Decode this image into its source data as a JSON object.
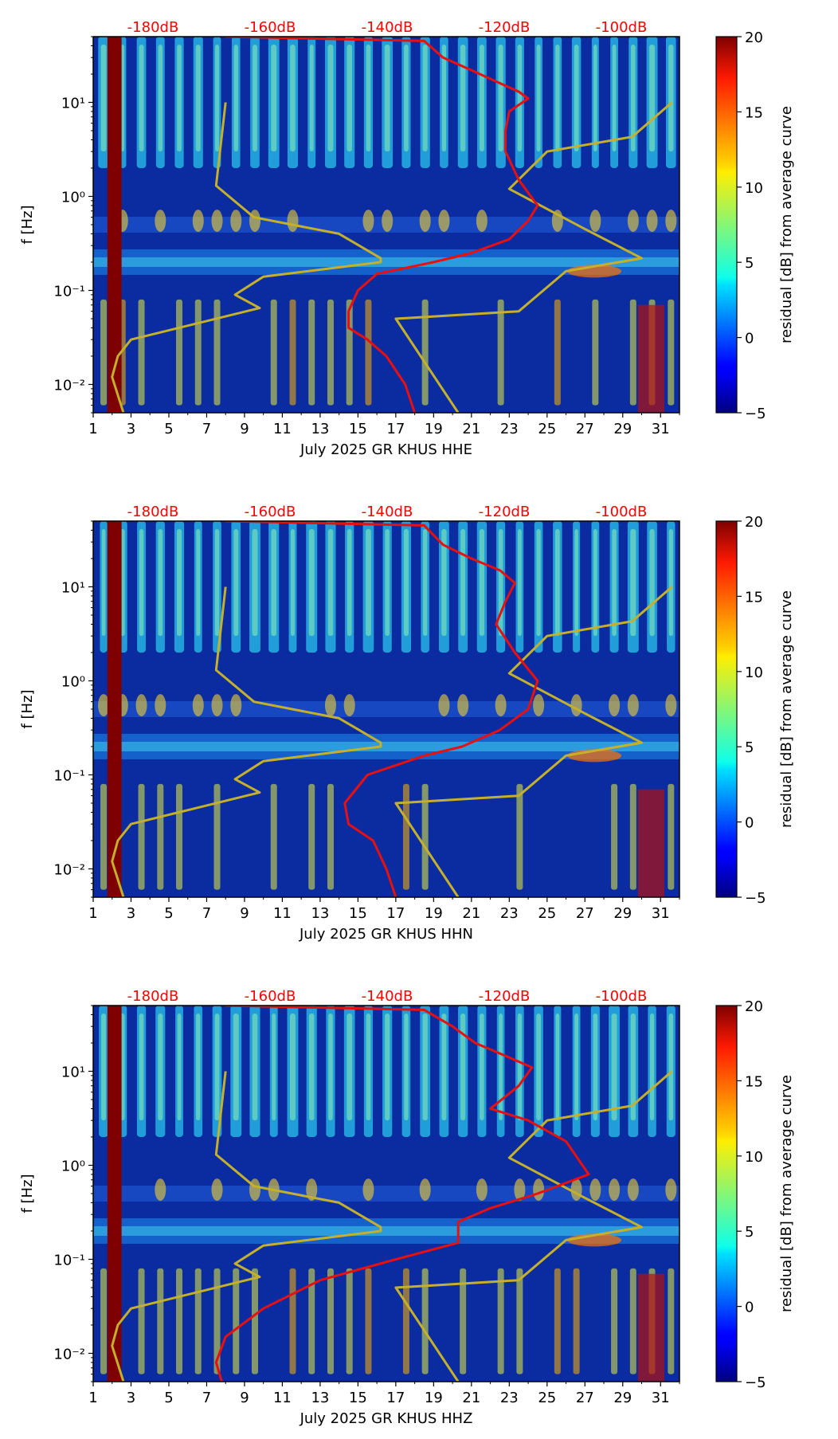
{
  "chart_data": [
    {
      "type": "heatmap",
      "channel": "HHE",
      "xlabel": "July 2025 GR KHUS  HHE",
      "ylabel": "f [Hz]",
      "x_ticks": [
        "1",
        "3",
        "5",
        "7",
        "9",
        "11",
        "13",
        "15",
        "17",
        "19",
        "21",
        "23",
        "25",
        "27",
        "29",
        "31"
      ],
      "x_range": [
        1,
        32
      ],
      "y_range": [
        0.005,
        50
      ],
      "y_scale": "log",
      "y_ticks": [
        "10⁻²",
        "10⁻¹",
        "10⁰",
        "10¹"
      ],
      "db_labels": [
        "-180dB",
        "-160dB",
        "-140dB",
        "-120dB",
        "-100dB"
      ],
      "colorbar": {
        "label": "residual [dB] from average curve",
        "ticks": [
          "−5",
          "0",
          "5",
          "10",
          "15",
          "20"
        ],
        "range": [
          -5,
          20
        ],
        "colormap": "jet"
      },
      "red_curve": [
        [
          8,
          50
        ],
        [
          18.5,
          45
        ],
        [
          19.5,
          30
        ],
        [
          21,
          22
        ],
        [
          22.5,
          16
        ],
        [
          23.5,
          13
        ],
        [
          24,
          11
        ],
        [
          23,
          8
        ],
        [
          22.8,
          5
        ],
        [
          22.8,
          3
        ],
        [
          23.5,
          1.5
        ],
        [
          24.5,
          0.8
        ],
        [
          24,
          0.55
        ],
        [
          23,
          0.35
        ],
        [
          21,
          0.25
        ],
        [
          19,
          0.2
        ],
        [
          16,
          0.15
        ],
        [
          15,
          0.1
        ],
        [
          14.5,
          0.06
        ],
        [
          14.5,
          0.04
        ],
        [
          15.5,
          0.03
        ],
        [
          16.5,
          0.02
        ],
        [
          17.5,
          0.01
        ],
        [
          18,
          0.005
        ]
      ],
      "yellow_curve": [
        [
          8,
          10
        ],
        [
          7.5,
          1.3
        ],
        [
          9.5,
          0.6
        ],
        [
          14,
          0.4
        ],
        [
          16.2,
          0.22
        ],
        [
          16.2,
          0.2
        ],
        [
          10,
          0.14
        ],
        [
          8.5,
          0.09
        ],
        [
          9.8,
          0.065
        ],
        [
          3,
          0.03
        ],
        [
          2.3,
          0.02
        ],
        [
          2,
          0.012
        ],
        [
          2.6,
          0.005
        ]
      ],
      "olive_curve": [
        [
          31.6,
          10
        ],
        [
          29.5,
          4.3
        ],
        [
          25,
          3
        ],
        [
          23,
          1.2
        ],
        [
          27,
          0.45
        ],
        [
          30,
          0.22
        ],
        [
          26,
          0.16
        ],
        [
          23.5,
          0.06
        ],
        [
          17,
          0.05
        ],
        [
          20.3,
          0.005
        ]
      ]
    },
    {
      "type": "heatmap",
      "channel": "HHN",
      "xlabel": "July 2025 GR KHUS  HHN",
      "ylabel": "f [Hz]",
      "x_ticks": [
        "1",
        "3",
        "5",
        "7",
        "9",
        "11",
        "13",
        "15",
        "17",
        "19",
        "21",
        "23",
        "25",
        "27",
        "29",
        "31"
      ],
      "x_range": [
        1,
        32
      ],
      "y_range": [
        0.005,
        50
      ],
      "y_scale": "log",
      "y_ticks": [
        "10⁻²",
        "10⁻¹",
        "10⁰",
        "10¹"
      ],
      "db_labels": [
        "-180dB",
        "-160dB",
        "-140dB",
        "-120dB",
        "-100dB"
      ],
      "colorbar": {
        "label": "residual [dB] from average curve",
        "ticks": [
          "−5",
          "0",
          "5",
          "10",
          "15",
          "20"
        ],
        "range": [
          -5,
          20
        ],
        "colormap": "jet"
      },
      "red_curve": [
        [
          8,
          50
        ],
        [
          18.5,
          45
        ],
        [
          19.5,
          28
        ],
        [
          21,
          20
        ],
        [
          22.5,
          15
        ],
        [
          23.3,
          11
        ],
        [
          22.8,
          7
        ],
        [
          22.3,
          4
        ],
        [
          23.3,
          2
        ],
        [
          24.5,
          1
        ],
        [
          24,
          0.5
        ],
        [
          22.5,
          0.3
        ],
        [
          20.5,
          0.2
        ],
        [
          18.5,
          0.16
        ],
        [
          15.5,
          0.1
        ],
        [
          14.3,
          0.05
        ],
        [
          14.5,
          0.03
        ],
        [
          15.8,
          0.02
        ],
        [
          16.5,
          0.01
        ],
        [
          17,
          0.005
        ]
      ],
      "yellow_curve": [
        [
          8,
          10
        ],
        [
          7.5,
          1.3
        ],
        [
          9.5,
          0.6
        ],
        [
          14,
          0.4
        ],
        [
          16.2,
          0.22
        ],
        [
          16.2,
          0.2
        ],
        [
          10,
          0.14
        ],
        [
          8.5,
          0.09
        ],
        [
          9.8,
          0.065
        ],
        [
          3,
          0.03
        ],
        [
          2.3,
          0.02
        ],
        [
          2,
          0.012
        ],
        [
          2.6,
          0.005
        ]
      ],
      "olive_curve": [
        [
          31.6,
          10
        ],
        [
          29.5,
          4.3
        ],
        [
          25,
          3
        ],
        [
          23,
          1.2
        ],
        [
          27,
          0.45
        ],
        [
          30,
          0.22
        ],
        [
          26,
          0.16
        ],
        [
          23.5,
          0.06
        ],
        [
          17,
          0.05
        ],
        [
          20.3,
          0.005
        ]
      ]
    },
    {
      "type": "heatmap",
      "channel": "HHZ",
      "xlabel": "July 2025 GR KHUS  HHZ",
      "ylabel": "f [Hz]",
      "x_ticks": [
        "1",
        "3",
        "5",
        "7",
        "9",
        "11",
        "13",
        "15",
        "17",
        "19",
        "21",
        "23",
        "25",
        "27",
        "29",
        "31"
      ],
      "x_range": [
        1,
        32
      ],
      "y_range": [
        0.005,
        50
      ],
      "y_scale": "log",
      "y_ticks": [
        "10⁻²",
        "10⁻¹",
        "10⁰",
        "10¹"
      ],
      "db_labels": [
        "-180dB",
        "-160dB",
        "-140dB",
        "-120dB",
        "-100dB"
      ],
      "colorbar": {
        "label": "residual [dB] from average curve",
        "ticks": [
          "−5",
          "0",
          "5",
          "10",
          "15",
          "20"
        ],
        "range": [
          -5,
          20
        ],
        "colormap": "jet"
      },
      "red_curve": [
        [
          8,
          50
        ],
        [
          18.5,
          45
        ],
        [
          20,
          30
        ],
        [
          21.2,
          20
        ],
        [
          23,
          14
        ],
        [
          24.2,
          11
        ],
        [
          23.5,
          7
        ],
        [
          22,
          4
        ],
        [
          24,
          3
        ],
        [
          26,
          1.8
        ],
        [
          27.2,
          0.8
        ],
        [
          24.5,
          0.5
        ],
        [
          22,
          0.35
        ],
        [
          20.3,
          0.25
        ],
        [
          20.3,
          0.15
        ],
        [
          17,
          0.1
        ],
        [
          13,
          0.06
        ],
        [
          10,
          0.03
        ],
        [
          8,
          0.015
        ],
        [
          7.5,
          0.008
        ],
        [
          7.8,
          0.005
        ]
      ],
      "yellow_curve": [
        [
          8,
          10
        ],
        [
          7.5,
          1.3
        ],
        [
          9.5,
          0.6
        ],
        [
          14,
          0.4
        ],
        [
          16.2,
          0.22
        ],
        [
          16.2,
          0.2
        ],
        [
          10,
          0.14
        ],
        [
          8.5,
          0.09
        ],
        [
          9.8,
          0.065
        ],
        [
          3,
          0.03
        ],
        [
          2.3,
          0.02
        ],
        [
          2,
          0.012
        ],
        [
          2.6,
          0.005
        ]
      ],
      "olive_curve": [
        [
          31.6,
          10
        ],
        [
          29.5,
          4.3
        ],
        [
          25,
          3
        ],
        [
          23,
          1.2
        ],
        [
          27,
          0.45
        ],
        [
          30,
          0.22
        ],
        [
          26,
          0.16
        ],
        [
          23.5,
          0.06
        ],
        [
          17,
          0.05
        ],
        [
          20.3,
          0.005
        ]
      ]
    }
  ],
  "colors": {
    "red_curve": "#e8100e",
    "yellow_curve": "#c4b02a",
    "background": "#0a2ca0"
  }
}
